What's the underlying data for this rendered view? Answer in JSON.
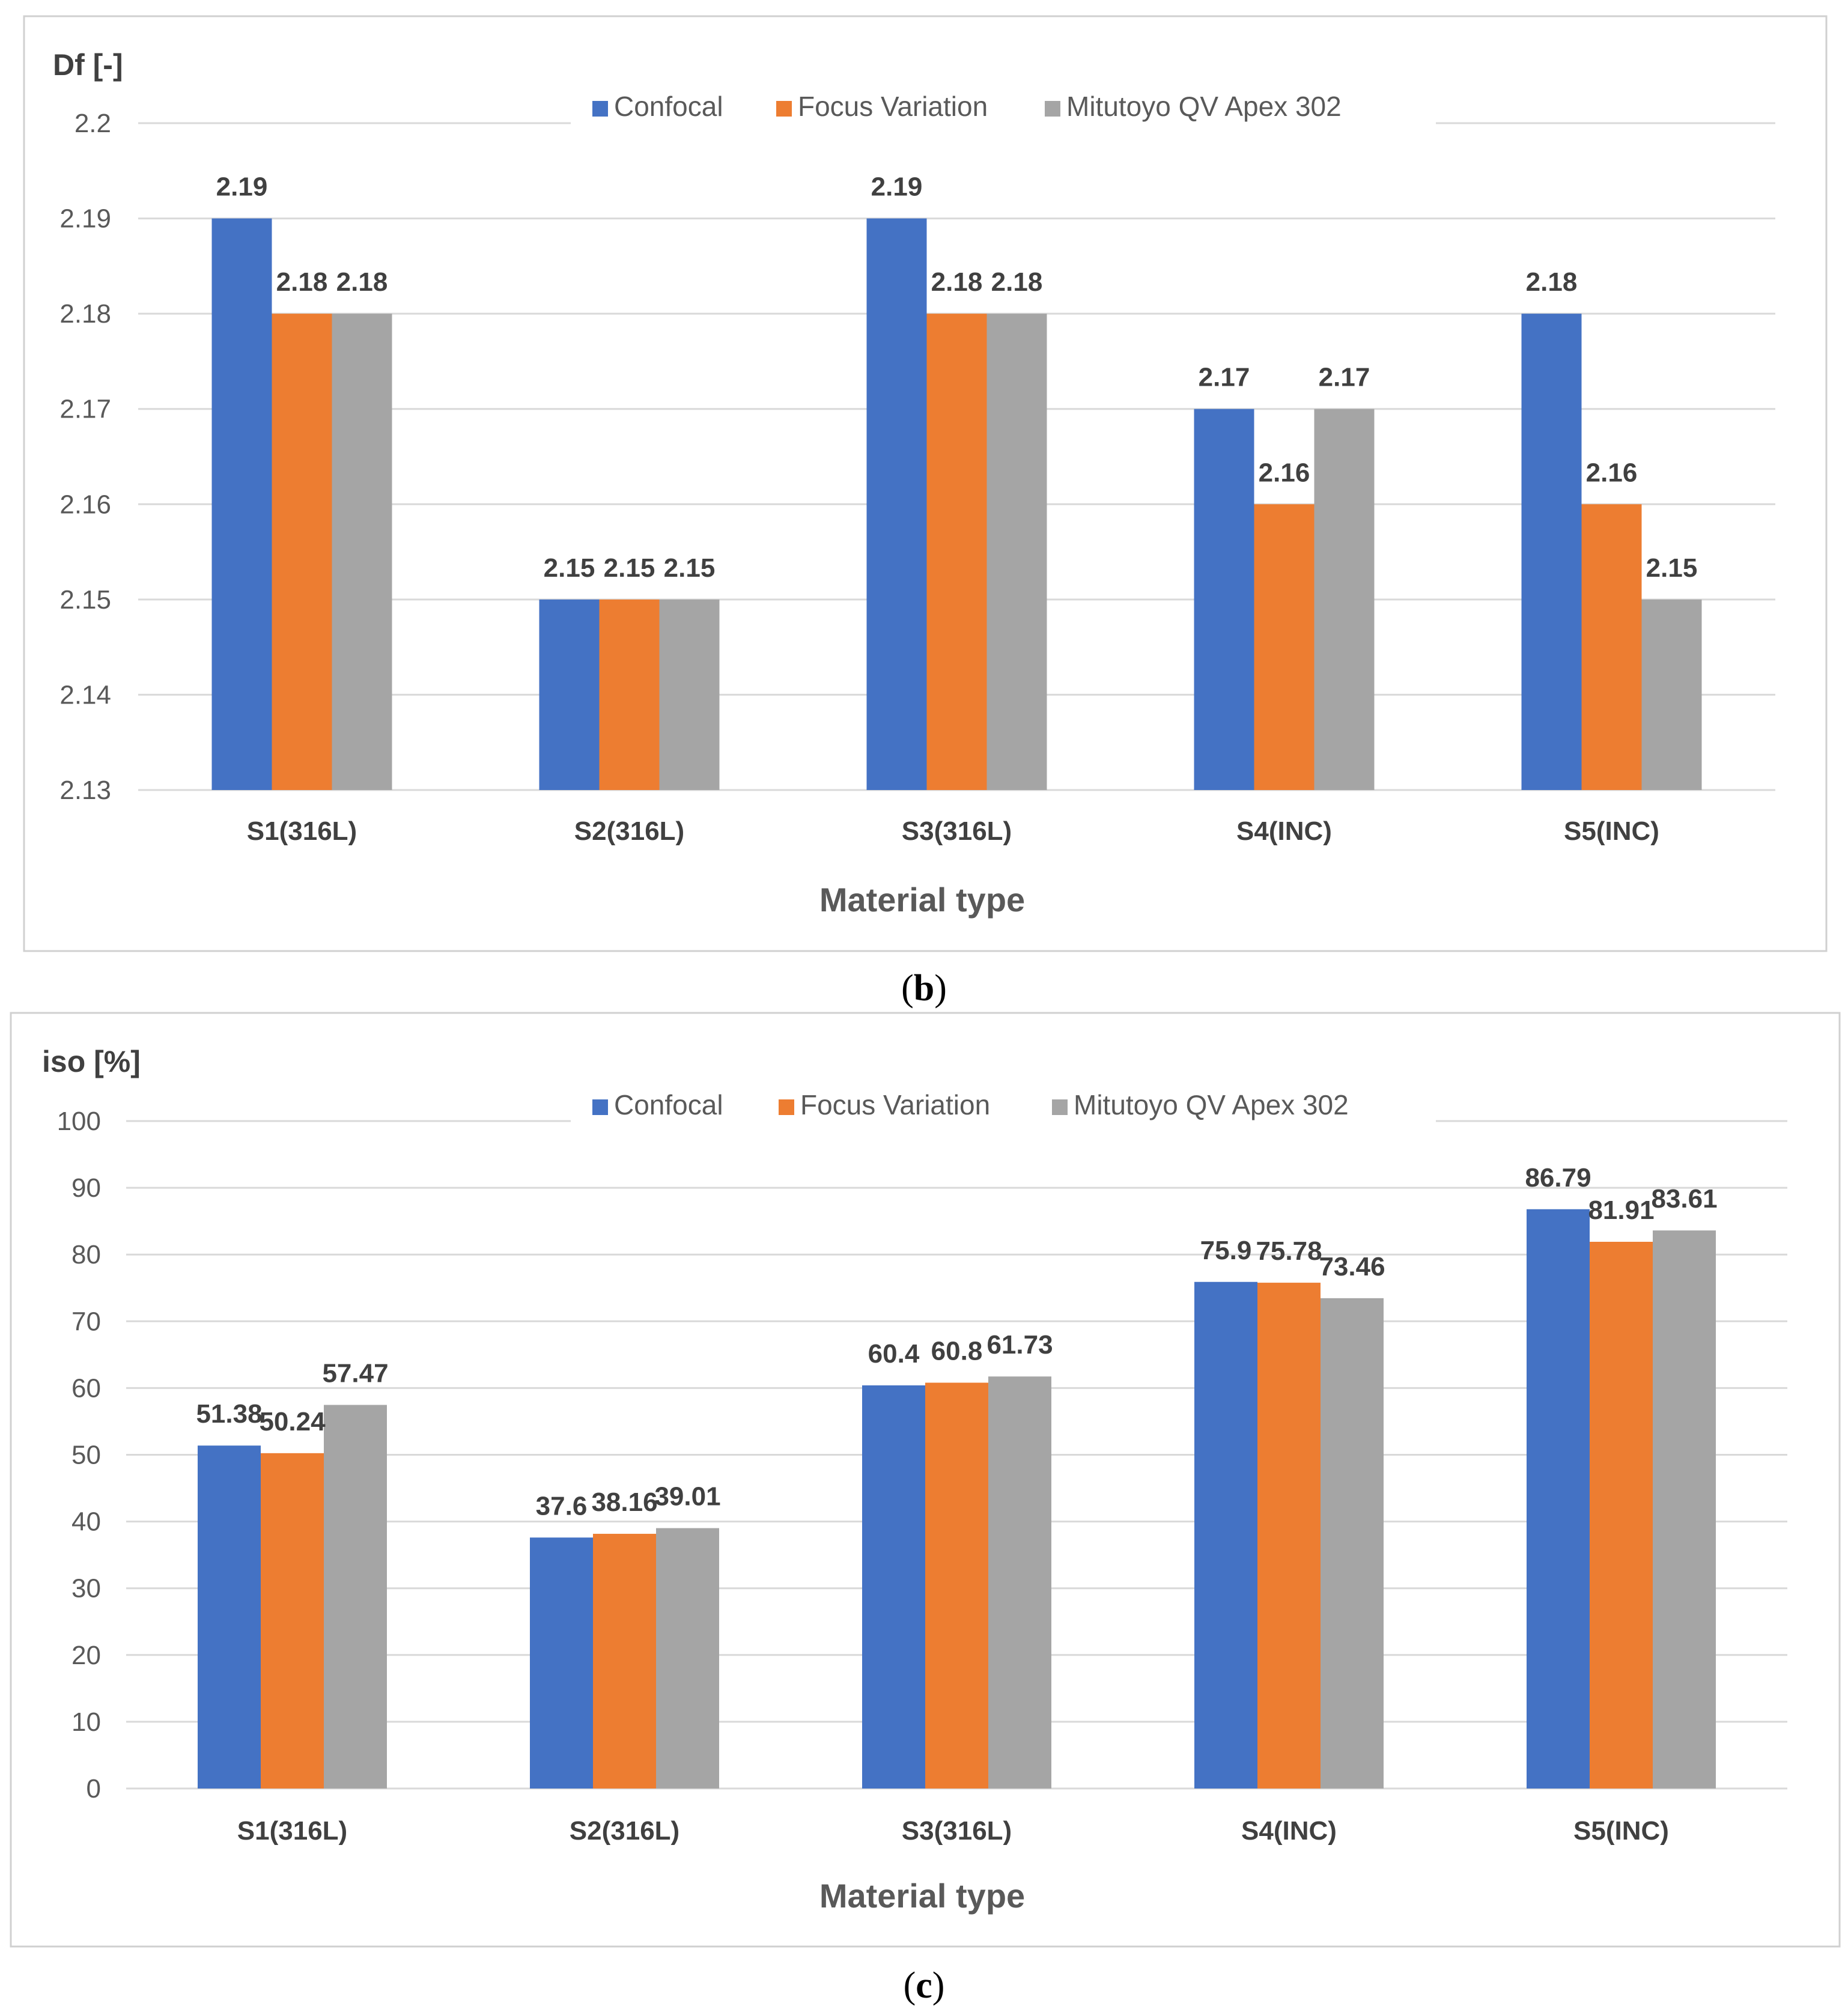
{
  "chart_data": [
    {
      "type": "bar",
      "panel_label": "b",
      "ylabel": "Df [-]",
      "xlabel": "Material type",
      "categories": [
        "S1(316L)",
        "S2(316L)",
        "S3(316L)",
        "S4(INC)",
        "S5(INC)"
      ],
      "series": [
        {
          "name": "Confocal",
          "color": "#4472C4",
          "values": [
            2.19,
            2.15,
            2.19,
            2.17,
            2.18
          ]
        },
        {
          "name": "Focus Variation",
          "color": "#ED7D31",
          "values": [
            2.18,
            2.15,
            2.18,
            2.16,
            2.16
          ]
        },
        {
          "name": "Mitutoyo QV Apex 302",
          "color": "#A5A5A5",
          "values": [
            2.18,
            2.15,
            2.18,
            2.17,
            2.15
          ]
        }
      ],
      "ylim": [
        2.13,
        2.2
      ],
      "yticks": [
        "2.13",
        "2.14",
        "2.15",
        "2.16",
        "2.17",
        "2.18",
        "2.19",
        "2.2"
      ],
      "grid": true,
      "legend": "top-center"
    },
    {
      "type": "bar",
      "panel_label": "c",
      "ylabel": "iso [%]",
      "xlabel": "Material type",
      "categories": [
        "S1(316L)",
        "S2(316L)",
        "S3(316L)",
        "S4(INC)",
        "S5(INC)"
      ],
      "series": [
        {
          "name": "Confocal",
          "color": "#4472C4",
          "values": [
            51.38,
            37.6,
            60.4,
            75.9,
            86.79
          ]
        },
        {
          "name": "Focus Variation",
          "color": "#ED7D31",
          "values": [
            50.24,
            38.16,
            60.8,
            75.78,
            81.91
          ]
        },
        {
          "name": "Mitutoyo QV Apex 302",
          "color": "#A5A5A5",
          "values": [
            57.47,
            39.01,
            61.73,
            73.46,
            83.61
          ]
        }
      ],
      "ylim": [
        0,
        100
      ],
      "yticks": [
        "0",
        "10",
        "20",
        "30",
        "40",
        "50",
        "60",
        "70",
        "80",
        "90",
        "100"
      ],
      "grid": true,
      "legend": "top-center"
    }
  ]
}
